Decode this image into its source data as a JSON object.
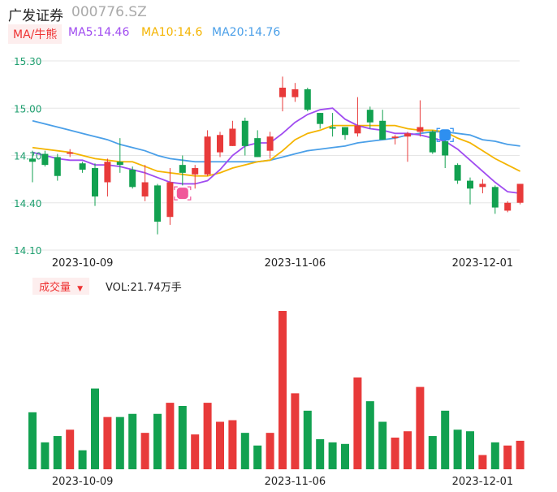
{
  "header": {
    "name": "广发证券",
    "code": "000776.SZ"
  },
  "legend": {
    "toggle_label": "MA/牛熊",
    "items": [
      {
        "label": "MA5:14.46",
        "color": "#a04cf0"
      },
      {
        "label": "MA10:14.6",
        "color": "#f4b400"
      },
      {
        "label": "MA20:14.76",
        "color": "#4a9fe8"
      }
    ]
  },
  "volume_panel": {
    "toggle_label": "成交量",
    "vol_text": "VOL:21.74万手"
  },
  "colors": {
    "up": "#e83a3a",
    "down": "#12a150"
  },
  "chart_data": {
    "type": "candlestick",
    "ylim": [
      14.1,
      15.3
    ],
    "yticks": [
      "15.30",
      "15.00",
      "14.70",
      "14.40",
      "14.10"
    ],
    "xtick_labels": [
      {
        "index": 4,
        "label": "2023-10-09"
      },
      {
        "index": 21,
        "label": "2023-11-06"
      },
      {
        "index": 36,
        "label": "2023-12-01"
      }
    ],
    "candles": [
      [
        14.68,
        14.66,
        14.73,
        14.53
      ],
      [
        14.71,
        14.64,
        14.73,
        14.63
      ],
      [
        14.69,
        14.57,
        14.71,
        14.54
      ],
      [
        14.71,
        14.72,
        14.74,
        14.69
      ],
      [
        14.65,
        14.61,
        14.66,
        14.59
      ],
      [
        14.62,
        14.44,
        14.65,
        14.38
      ],
      [
        14.53,
        14.66,
        14.68,
        14.44
      ],
      [
        14.66,
        14.64,
        14.81,
        14.59
      ],
      [
        14.61,
        14.5,
        14.63,
        14.49
      ],
      [
        14.44,
        14.53,
        14.64,
        14.41
      ],
      [
        14.51,
        14.28,
        14.52,
        14.2
      ],
      [
        14.31,
        14.53,
        14.62,
        14.26
      ],
      [
        14.64,
        14.59,
        14.7,
        14.51
      ],
      [
        14.58,
        14.62,
        14.64,
        14.49
      ],
      [
        14.58,
        14.82,
        14.86,
        14.57
      ],
      [
        14.72,
        14.83,
        14.85,
        14.69
      ],
      [
        14.76,
        14.87,
        14.92,
        14.76
      ],
      [
        14.92,
        14.76,
        14.94,
        14.7
      ],
      [
        14.81,
        14.69,
        14.86,
        14.69
      ],
      [
        14.73,
        14.82,
        14.85,
        14.68
      ],
      [
        15.07,
        15.13,
        15.2,
        14.98
      ],
      [
        15.07,
        15.12,
        15.16,
        15.04
      ],
      [
        15.12,
        14.99,
        15.13,
        14.98
      ],
      [
        14.97,
        14.9,
        14.97,
        14.87
      ],
      [
        14.88,
        14.87,
        14.97,
        14.82
      ],
      [
        14.88,
        14.83,
        14.88,
        14.8
      ],
      [
        14.84,
        14.89,
        15.07,
        14.82
      ],
      [
        14.99,
        14.91,
        15.01,
        14.87
      ],
      [
        14.92,
        14.8,
        14.99,
        14.8
      ],
      [
        14.81,
        14.82,
        14.83,
        14.77
      ],
      [
        14.82,
        14.84,
        14.85,
        14.66
      ],
      [
        14.85,
        14.88,
        15.05,
        14.82
      ],
      [
        14.85,
        14.72,
        14.86,
        14.71
      ],
      [
        14.79,
        14.7,
        14.81,
        14.62
      ],
      [
        14.64,
        14.54,
        14.65,
        14.52
      ],
      [
        14.54,
        14.49,
        14.56,
        14.39
      ],
      [
        14.5,
        14.52,
        14.55,
        14.46
      ],
      [
        14.5,
        14.37,
        14.51,
        14.33
      ],
      [
        14.35,
        14.4,
        14.41,
        14.34
      ],
      [
        14.4,
        14.52,
        14.52,
        14.39
      ]
    ],
    "volume_scale_max": 1.0,
    "volumes": [
      0.36,
      0.17,
      0.21,
      0.25,
      0.12,
      0.51,
      0.33,
      0.33,
      0.35,
      0.23,
      0.35,
      0.42,
      0.4,
      0.22,
      0.42,
      0.3,
      0.31,
      0.23,
      0.15,
      0.23,
      1.0,
      0.48,
      0.37,
      0.19,
      0.17,
      0.16,
      0.58,
      0.43,
      0.3,
      0.2,
      0.24,
      0.52,
      0.21,
      0.37,
      0.25,
      0.24,
      0.09,
      0.17,
      0.15,
      0.18
    ],
    "ma5": [
      14.72,
      14.7,
      14.68,
      14.67,
      14.67,
      14.64,
      14.64,
      14.63,
      14.61,
      14.59,
      14.56,
      14.53,
      14.52,
      14.52,
      14.54,
      14.61,
      14.7,
      14.76,
      14.78,
      14.78,
      14.84,
      14.91,
      14.96,
      14.99,
      15.0,
      14.93,
      14.89,
      14.87,
      14.86,
      14.84,
      14.84,
      14.83,
      14.81,
      14.79,
      14.74,
      14.67,
      14.6,
      14.53,
      14.47,
      14.46
    ],
    "ma10": [
      14.75,
      14.74,
      14.73,
      14.72,
      14.7,
      14.68,
      14.67,
      14.66,
      14.66,
      14.63,
      14.6,
      14.59,
      14.58,
      14.57,
      14.57,
      14.59,
      14.62,
      14.64,
      14.66,
      14.67,
      14.73,
      14.8,
      14.84,
      14.86,
      14.89,
      14.89,
      14.89,
      14.89,
      14.89,
      14.89,
      14.87,
      14.86,
      14.86,
      14.85,
      14.81,
      14.78,
      14.73,
      14.68,
      14.64,
      14.6
    ],
    "ma20": [
      14.92,
      14.9,
      14.88,
      14.86,
      14.84,
      14.82,
      14.8,
      14.77,
      14.75,
      14.73,
      14.7,
      14.68,
      14.67,
      14.66,
      14.66,
      14.66,
      14.66,
      14.66,
      14.66,
      14.67,
      14.69,
      14.71,
      14.73,
      14.74,
      14.75,
      14.76,
      14.78,
      14.79,
      14.8,
      14.81,
      14.83,
      14.84,
      14.85,
      14.85,
      14.84,
      14.83,
      14.8,
      14.79,
      14.77,
      14.76
    ]
  }
}
